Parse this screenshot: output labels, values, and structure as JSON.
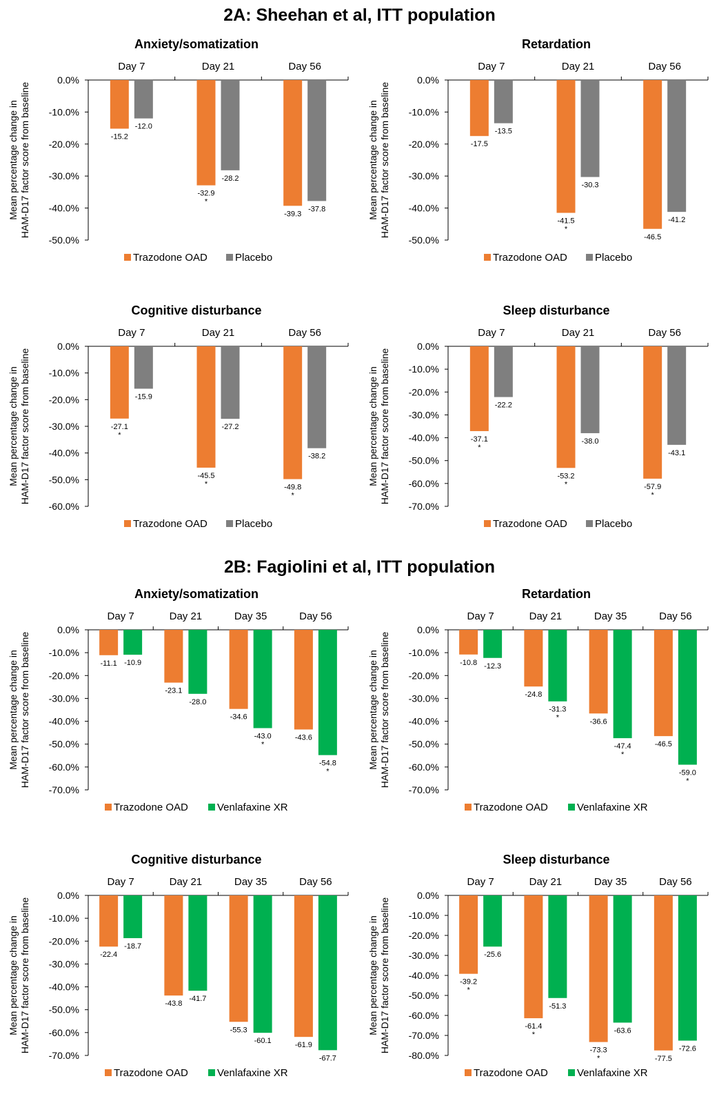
{
  "sections": [
    {
      "title": "2A: Sheehan et al, ITT population"
    },
    {
      "title": "2B: Fagiolini et al, ITT population"
    }
  ],
  "colors": {
    "trazodone": "#ED7D31",
    "placebo": "#7F7F7F",
    "venlafaxine": "#00B050"
  },
  "chart_data": [
    {
      "type": "bar",
      "title": "Anxiety/somatization",
      "ylabel": "Mean percentage change in HAM-D17 factor score from baseline",
      "categories": [
        "Day 7",
        "Day 21",
        "Day 56"
      ],
      "ylim": [
        -50,
        0
      ],
      "ytick_step": 10,
      "series": [
        {
          "name": "Trazodone OAD",
          "color": "#ED7D31",
          "values": [
            -15.2,
            -32.9,
            -39.3
          ],
          "significant": [
            false,
            true,
            false
          ]
        },
        {
          "name": "Placebo",
          "color": "#7F7F7F",
          "values": [
            -12.0,
            -28.2,
            -37.8
          ],
          "significant": [
            false,
            false,
            false
          ]
        }
      ],
      "legend": "bottom"
    },
    {
      "type": "bar",
      "title": "Retardation",
      "ylabel": "Mean percentage change in HAM-D17 factor score from baseline",
      "categories": [
        "Day 7",
        "Day 21",
        "Day 56"
      ],
      "ylim": [
        -50,
        0
      ],
      "ytick_step": 10,
      "series": [
        {
          "name": "Trazodone OAD",
          "color": "#ED7D31",
          "values": [
            -17.5,
            -41.5,
            -46.5
          ],
          "significant": [
            false,
            true,
            false
          ]
        },
        {
          "name": "Placebo",
          "color": "#7F7F7F",
          "values": [
            -13.5,
            -30.3,
            -41.2
          ],
          "significant": [
            false,
            false,
            false
          ]
        }
      ],
      "legend": "bottom"
    },
    {
      "type": "bar",
      "title": "Cognitive disturbance",
      "ylabel": "Mean percentage change in HAM-D17 factor score from baseline",
      "categories": [
        "Day 7",
        "Day 21",
        "Day 56"
      ],
      "ylim": [
        -60,
        0
      ],
      "ytick_step": 10,
      "series": [
        {
          "name": "Trazodone OAD",
          "color": "#ED7D31",
          "values": [
            -27.1,
            -45.5,
            -49.8
          ],
          "significant": [
            true,
            true,
            true
          ]
        },
        {
          "name": "Placebo",
          "color": "#7F7F7F",
          "values": [
            -15.9,
            -27.2,
            -38.2
          ],
          "significant": [
            false,
            false,
            false
          ]
        }
      ],
      "legend": "bottom"
    },
    {
      "type": "bar",
      "title": "Sleep disturbance",
      "ylabel": "Mean percentage change in HAM-D17 factor score from baseline",
      "categories": [
        "Day 7",
        "Day 21",
        "Day 56"
      ],
      "ylim": [
        -70,
        0
      ],
      "ytick_step": 10,
      "series": [
        {
          "name": "Trazodone OAD",
          "color": "#ED7D31",
          "values": [
            -37.1,
            -53.2,
            -57.9
          ],
          "significant": [
            true,
            true,
            true
          ]
        },
        {
          "name": "Placebo",
          "color": "#7F7F7F",
          "values": [
            -22.2,
            -38.0,
            -43.1
          ],
          "significant": [
            false,
            false,
            false
          ]
        }
      ],
      "legend": "bottom"
    },
    {
      "type": "bar",
      "title": "Anxiety/somatization",
      "ylabel": "Mean percentage change in HAM-D17 factor score from baseline",
      "categories": [
        "Day 7",
        "Day 21",
        "Day 35",
        "Day 56"
      ],
      "ylim": [
        -70,
        0
      ],
      "ytick_step": 10,
      "series": [
        {
          "name": "Trazodone OAD",
          "color": "#ED7D31",
          "values": [
            -11.1,
            -23.1,
            -34.6,
            -43.6
          ],
          "significant": [
            false,
            false,
            false,
            false
          ]
        },
        {
          "name": "Venlafaxine XR",
          "color": "#00B050",
          "values": [
            -10.9,
            -28.0,
            -43.0,
            -54.8
          ],
          "significant": [
            false,
            false,
            true,
            true
          ]
        }
      ],
      "legend": "bottom"
    },
    {
      "type": "bar",
      "title": "Retardation",
      "ylabel": "Mean percentage change in HAM-D17 factor score from baseline",
      "categories": [
        "Day 7",
        "Day 21",
        "Day 35",
        "Day 56"
      ],
      "ylim": [
        -70,
        0
      ],
      "ytick_step": 10,
      "series": [
        {
          "name": "Trazodone OAD",
          "color": "#ED7D31",
          "values": [
            -10.8,
            -24.8,
            -36.6,
            -46.5
          ],
          "significant": [
            false,
            false,
            false,
            false
          ]
        },
        {
          "name": "Venlafaxine XR",
          "color": "#00B050",
          "values": [
            -12.3,
            -31.3,
            -47.4,
            -59.0
          ],
          "significant": [
            false,
            true,
            true,
            true
          ]
        }
      ],
      "legend": "bottom"
    },
    {
      "type": "bar",
      "title": "Cognitive disturbance",
      "ylabel": "Mean percentage change in HAM-D17 factor score from baseline",
      "categories": [
        "Day 7",
        "Day 21",
        "Day 35",
        "Day 56"
      ],
      "ylim": [
        -70,
        0
      ],
      "ytick_step": 10,
      "series": [
        {
          "name": "Trazodone OAD",
          "color": "#ED7D31",
          "values": [
            -22.4,
            -43.8,
            -55.3,
            -61.9
          ],
          "significant": [
            false,
            false,
            false,
            false
          ]
        },
        {
          "name": "Venlafaxine XR",
          "color": "#00B050",
          "values": [
            -18.7,
            -41.7,
            -60.1,
            -67.7
          ],
          "significant": [
            false,
            false,
            false,
            false
          ]
        }
      ],
      "legend": "bottom"
    },
    {
      "type": "bar",
      "title": "Sleep disturbance",
      "ylabel": "Mean percentage change in HAM-D17 factor score from baseline",
      "categories": [
        "Day 7",
        "Day 21",
        "Day 35",
        "Day 56"
      ],
      "ylim": [
        -80,
        0
      ],
      "ytick_step": 10,
      "series": [
        {
          "name": "Trazodone OAD",
          "color": "#ED7D31",
          "values": [
            -39.2,
            -61.4,
            -73.3,
            -77.5
          ],
          "significant": [
            true,
            true,
            true,
            false
          ]
        },
        {
          "name": "Venlafaxine XR",
          "color": "#00B050",
          "values": [
            -25.6,
            -51.3,
            -63.6,
            -72.6
          ],
          "significant": [
            false,
            false,
            false,
            false
          ]
        }
      ],
      "legend": "bottom"
    }
  ]
}
